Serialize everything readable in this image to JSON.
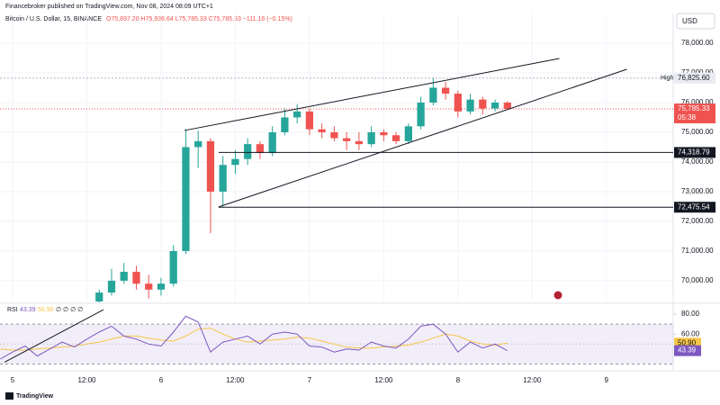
{
  "chart_data": {
    "type": "candlestick",
    "publisher": "Financebroker published on TradingView.com, Nov 08, 2024 08:09 UTC+1",
    "symbol": "Bitcoin / U.S. Dollar, 15, BINANCE",
    "ohlc": "O75,897.20 H75,936.64 L75,785.33 C75,785.33 −111.16 (−0.15%)",
    "currency": "USD",
    "brand": "TradingView",
    "xlim": [
      -2.04,
      106.8
    ],
    "xticks": [
      {
        "value": 0,
        "label": "5"
      },
      {
        "value": 12,
        "label": "12:00"
      },
      {
        "value": 24,
        "label": "6"
      },
      {
        "value": 36,
        "label": "12:00"
      },
      {
        "value": 48,
        "label": "7"
      },
      {
        "value": 60,
        "label": "12:00"
      },
      {
        "value": 72,
        "label": "8"
      },
      {
        "value": 84,
        "label": "12:00"
      },
      {
        "value": 96,
        "label": "9"
      }
    ],
    "ylim": [
      69300,
      79000
    ],
    "yticks": [
      {
        "value": 70000,
        "label": "70,000.00"
      },
      {
        "value": 71000,
        "label": "71,000.00"
      },
      {
        "value": 72000,
        "label": "72,000.00"
      },
      {
        "value": 73000,
        "label": "73,000.00"
      },
      {
        "value": 74000,
        "label": "74,000.00"
      },
      {
        "value": 75000,
        "label": "75,000.00"
      },
      {
        "value": 76000,
        "label": "76,000.00"
      },
      {
        "value": 77000,
        "label": "77,000.00"
      },
      {
        "value": 78000,
        "label": "78,000.00"
      }
    ],
    "up_color": "#26a69a",
    "down_color": "#ef5350",
    "x": [
      14,
      16,
      18,
      20,
      22,
      24,
      26,
      28,
      30,
      32,
      34,
      36,
      38,
      40,
      42,
      44,
      46,
      48,
      50,
      52,
      54,
      56,
      58,
      60,
      62,
      64,
      66,
      68,
      70,
      72,
      74,
      76,
      78,
      80
    ],
    "open": [
      69300,
      69600,
      70000,
      70300,
      69900,
      69700,
      69900,
      71000,
      74500,
      74700,
      73000,
      73900,
      74100,
      74600,
      74300,
      75000,
      75500,
      75700,
      75100,
      75000,
      74800,
      74700,
      74600,
      75000,
      74900,
      74700,
      75200,
      76000,
      76500,
      76300,
      75700,
      76100,
      75800,
      76000
    ],
    "high": [
      69700,
      70400,
      70600,
      70500,
      70200,
      70100,
      71200,
      75100,
      75050,
      74800,
      74200,
      74400,
      74800,
      74700,
      75200,
      75800,
      75950,
      75800,
      75300,
      75200,
      75000,
      75000,
      75200,
      75100,
      75000,
      75300,
      76200,
      76825.6,
      76700,
      76400,
      76300,
      76200,
      76100,
      76050
    ],
    "low": [
      69200,
      69500,
      69900,
      69700,
      69400,
      69500,
      69800,
      70900,
      73800,
      71600,
      72500,
      73600,
      73900,
      74100,
      74200,
      74900,
      75300,
      74900,
      74800,
      74700,
      74400,
      74400,
      74500,
      74700,
      74600,
      74600,
      75100,
      75900,
      76100,
      75500,
      75600,
      75600,
      75700,
      75750
    ],
    "close": [
      69600,
      70000,
      70300,
      69900,
      69700,
      69900,
      71000,
      74500,
      74700,
      73000,
      73900,
      74100,
      74600,
      74300,
      75000,
      75500,
      75700,
      75100,
      75000,
      74800,
      74700,
      74600,
      75000,
      74900,
      74700,
      75200,
      76000,
      76500,
      76300,
      75700,
      76100,
      75800,
      76000,
      75785.33
    ],
    "high_line": {
      "value": 76825.6,
      "label": "76,825.60",
      "text": "High"
    },
    "last_price": {
      "value": 75785.33,
      "label": "75,785.33",
      "countdown": "05:38"
    },
    "levels": [
      {
        "value": 74318.79,
        "label": "74,318.79",
        "from": 33.3
      },
      {
        "value": 72475.54,
        "label": "72,475.54",
        "from": 33.3
      }
    ],
    "trendlines": [
      {
        "x": [
          27.8,
          88.4
        ],
        "y": [
          75061,
          77485
        ]
      },
      {
        "x": [
          33.3,
          99.3
        ],
        "y": [
          72485,
          77121
        ]
      }
    ],
    "rsi": {
      "title": "RSI",
      "flags": "∅ ∅ ∅ ∅",
      "ylim": [
        25,
        90
      ],
      "yticks": [
        {
          "value": 80,
          "label": "80.00"
        },
        {
          "value": 60,
          "label": "60.00"
        }
      ],
      "band": [
        30,
        70
      ],
      "mid": 50,
      "color": "#7e57c2",
      "ma_color": "#f7c548",
      "x": [
        -2,
        0,
        2,
        4,
        6,
        8,
        10,
        12,
        14,
        16,
        18,
        20,
        22,
        24,
        26,
        28,
        30,
        32,
        34,
        36,
        38,
        40,
        42,
        44,
        46,
        48,
        50,
        52,
        54,
        56,
        58,
        60,
        62,
        64,
        66,
        68,
        70,
        72,
        74,
        76,
        78,
        80
      ],
      "values": [
        35,
        42,
        48,
        38,
        45,
        52,
        47,
        55,
        62,
        68,
        58,
        55,
        50,
        48,
        62,
        78,
        72,
        42,
        52,
        55,
        58,
        50,
        60,
        62,
        60,
        48,
        47,
        42,
        45,
        44,
        52,
        48,
        46,
        55,
        68,
        70,
        60,
        42,
        52,
        46,
        50,
        43.39
      ],
      "ma": [
        45,
        44,
        44,
        45,
        46,
        47,
        48,
        50,
        52,
        55,
        58,
        58,
        56,
        54,
        53,
        58,
        65,
        66,
        60,
        55,
        52,
        53,
        54,
        55,
        57,
        56,
        53,
        50,
        47,
        46,
        46,
        47,
        48,
        49,
        52,
        56,
        60,
        58,
        53,
        50,
        49,
        50.9
      ],
      "value_label": {
        "value": 43.39,
        "label": "43.39"
      },
      "ma_label": {
        "value": 50.9,
        "label": "50.90"
      },
      "trendline": {
        "x": [
          -1.3,
          14.7
        ],
        "y": [
          31.8,
          84.5
        ]
      }
    }
  }
}
